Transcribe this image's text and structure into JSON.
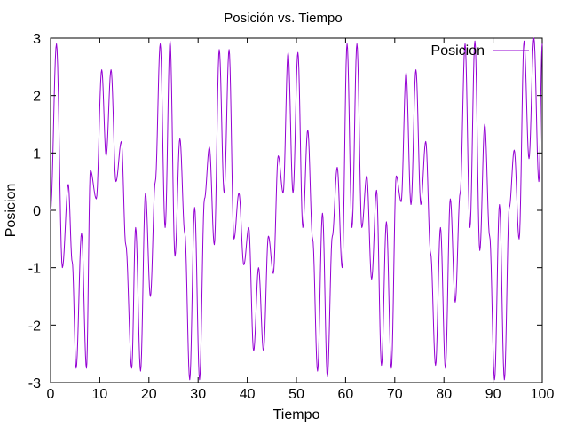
{
  "chart_data": {
    "type": "line",
    "title": "Posición vs. Tiempo",
    "xlabel": "Tiempo",
    "ylabel": "Posicion",
    "xlim": [
      0,
      100
    ],
    "ylim": [
      -3,
      3
    ],
    "xticks": [
      0,
      10,
      20,
      30,
      40,
      50,
      60,
      70,
      80,
      90,
      100
    ],
    "yticks": [
      -3,
      -2,
      -1,
      0,
      1,
      2,
      3
    ],
    "grid": false,
    "legend_position": "top-right",
    "series": [
      {
        "name": "Posicion",
        "color": "#9400d3",
        "x": [
          0,
          1.2,
          2.4,
          3.6,
          4.4,
          5.2,
          6.3,
          7.3,
          8.1,
          9.3,
          10.4,
          11.3,
          12.3,
          13.3,
          14.4,
          15.3,
          16.5,
          17.3,
          18.3,
          19.3,
          20.3,
          21.3,
          22.3,
          23.3,
          24.3,
          25.3,
          26.3,
          27.3,
          28.3,
          29.3,
          30.3,
          31.3,
          32.3,
          33.3,
          34.3,
          35.3,
          36.3,
          37.3,
          38.3,
          39.3,
          40.3,
          41.3,
          42.3,
          43.3,
          44.3,
          45.3,
          46.3,
          47.3,
          48.3,
          49.3,
          50.3,
          51.3,
          52.3,
          53.3,
          54.3,
          55.3,
          56.3,
          57.3,
          58.3,
          59.3,
          60.3,
          61.3,
          62.3,
          63.3,
          64.3,
          65.3,
          66.3,
          67.3,
          68.3,
          69.3,
          70.3,
          71.3,
          72.3,
          73.3,
          74.3,
          75.3,
          76.3,
          77.3,
          78.3,
          79.3,
          80.3,
          81.3,
          82.3,
          83.3,
          84.3,
          85.3,
          86.3,
          87.3,
          88.3,
          89.3,
          90.3,
          91.3,
          92.3,
          93.3,
          94.3,
          95.3,
          96.3,
          97.3,
          98.3,
          99.3,
          100
        ],
        "y": [
          0,
          2.9,
          -1.0,
          0.45,
          -0.9,
          -2.75,
          -0.4,
          -2.75,
          0.7,
          0.2,
          2.45,
          0.95,
          2.45,
          0.5,
          1.2,
          -0.6,
          -2.75,
          -0.3,
          -2.8,
          0.3,
          -1.5,
          0.5,
          2.9,
          -0.3,
          2.95,
          -0.8,
          1.25,
          -0.4,
          -2.95,
          0.05,
          -2.95,
          0.2,
          1.1,
          -0.6,
          2.8,
          0.3,
          2.8,
          -0.5,
          0.3,
          -0.95,
          -0.3,
          -2.45,
          -1.0,
          -2.45,
          -0.45,
          -1.1,
          0.95,
          0.3,
          2.75,
          0.3,
          2.75,
          -0.3,
          1.4,
          -0.5,
          -2.8,
          -0.05,
          -2.9,
          -0.45,
          0.75,
          -1.0,
          2.9,
          -0.3,
          2.9,
          -0.3,
          0.6,
          -1.2,
          0.35,
          -2.7,
          -0.2,
          -2.75,
          0.6,
          0.15,
          2.4,
          0.1,
          2.45,
          0.1,
          1.2,
          -0.75,
          -2.7,
          -0.3,
          -2.75,
          0.2,
          -1.6,
          0.3,
          2.9,
          -0.3,
          2.95,
          -0.7,
          1.5,
          -0.45,
          -2.95,
          0.1,
          -2.95,
          0.05,
          1.05,
          -0.5,
          2.95,
          0.9,
          3.0,
          0.5,
          2.9
        ]
      }
    ]
  }
}
